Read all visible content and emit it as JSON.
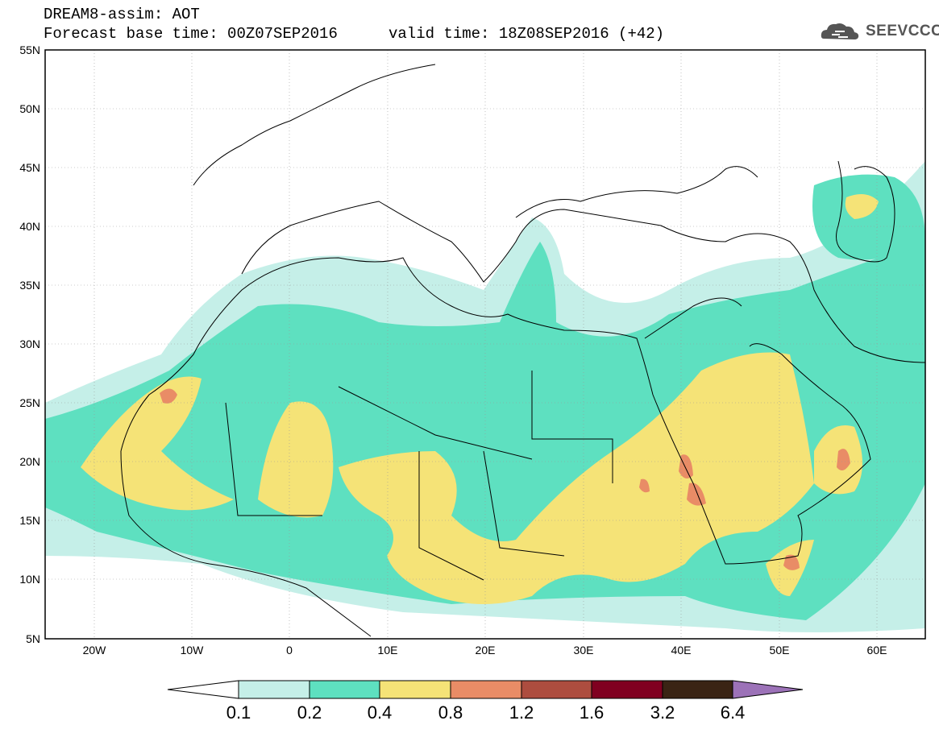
{
  "header": {
    "title": "DREAM8-assim: AOT",
    "base_time": "Forecast base time: 00Z07SEP2016",
    "valid_time": "valid time: 18Z08SEP2016 (+42)"
  },
  "logo": {
    "text": "SEEVCCC",
    "icon": "cloud-icon"
  },
  "map": {
    "lat_labels": [
      "55N",
      "50N",
      "45N",
      "40N",
      "35N",
      "30N",
      "25N",
      "20N",
      "15N",
      "10N",
      "5N"
    ],
    "lon_labels": [
      "20W",
      "10W",
      "0",
      "10E",
      "20E",
      "30E",
      "40E",
      "50E",
      "60E"
    ],
    "colors": {
      "c01": "#c5efe8",
      "c02": "#5ee0c0",
      "c04": "#f5e377",
      "c08": "#e98c66",
      "c12": "#ad4d3f",
      "c16": "#800020",
      "c32": "#3a2414",
      "c64": "#9c72b8"
    }
  },
  "colorbar": {
    "labels": [
      "0.1",
      "0.2",
      "0.4",
      "0.8",
      "1.2",
      "1.6",
      "3.2",
      "6.4"
    ]
  }
}
